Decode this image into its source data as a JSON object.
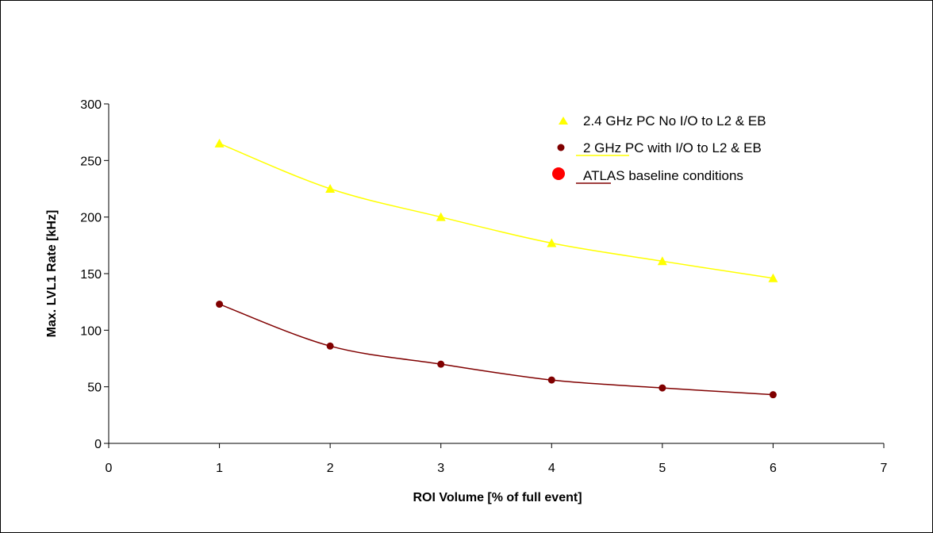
{
  "chart_data": {
    "type": "line",
    "xlabel": "ROI Volume [% of full event]",
    "ylabel": "Max. LVL1 Rate [kHz]",
    "xlim": [
      0,
      7
    ],
    "ylim": [
      0,
      300
    ],
    "xticks": [
      0,
      1,
      2,
      3,
      4,
      5,
      6,
      7
    ],
    "yticks": [
      0,
      50,
      100,
      150,
      200,
      250,
      300
    ],
    "grid": false,
    "legend_position": "top-right",
    "series": [
      {
        "name": "2.4 GHz PC  No I/O to L2 & EB",
        "marker": "triangle",
        "color": "#ffff00",
        "x": [
          1,
          2,
          3,
          4,
          5,
          6
        ],
        "values": [
          265,
          225,
          200,
          177,
          161,
          146
        ]
      },
      {
        "name": "2 GHz PC with I/O to L2 & EB",
        "marker": "circle",
        "color": "#800000",
        "x": [
          1,
          2,
          3,
          4,
          5,
          6
        ],
        "values": [
          123,
          86,
          70,
          56,
          49,
          43
        ]
      }
    ],
    "legend_extra": {
      "name": "ATLAS baseline conditions",
      "marker": "circle-large",
      "color": "#ff0000"
    }
  }
}
